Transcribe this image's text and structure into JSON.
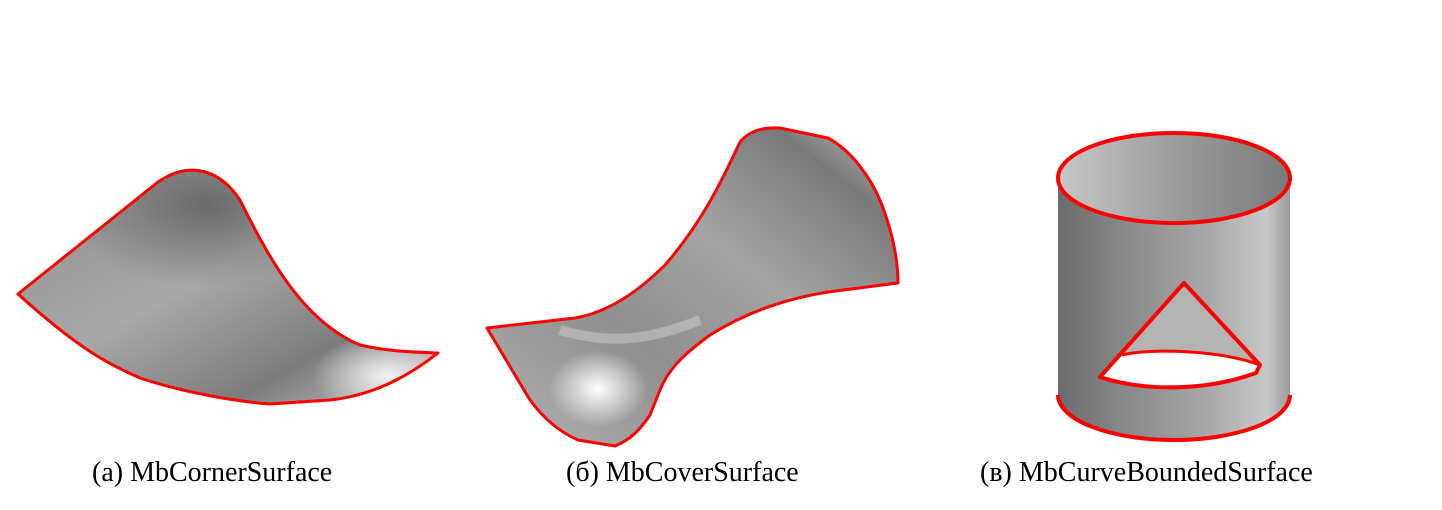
{
  "panels": [
    {
      "id": "a",
      "caption": "(а) MbCornerSurface"
    },
    {
      "id": "b",
      "caption": "(б) MbCoverSurface"
    },
    {
      "id": "c",
      "caption": "(в) MbCurveBoundedSurface"
    }
  ],
  "colors": {
    "boundary": "#ff0000",
    "surface_dark": "#6e6e6e",
    "surface_mid": "#9a9a9a",
    "surface_light": "#d6d6d6",
    "background": "#ffffff"
  }
}
